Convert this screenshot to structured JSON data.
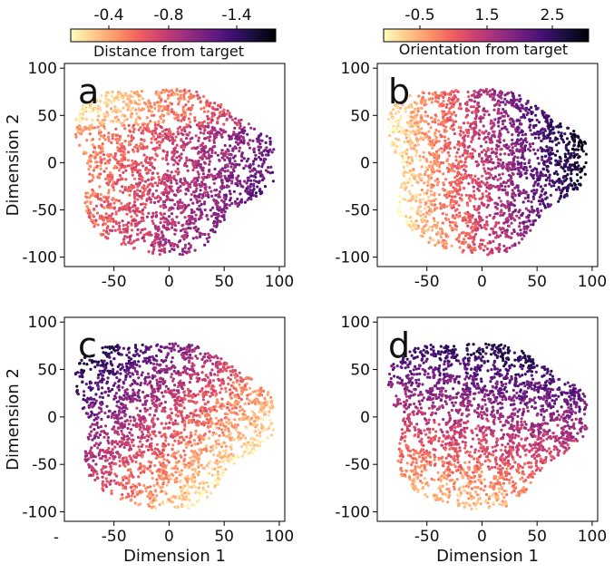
{
  "colormap": [
    "#fcfdbf",
    "#feca8d",
    "#fd9668",
    "#f1605d",
    "#cd4071",
    "#9e2f7f",
    "#721f81",
    "#440f76",
    "#180f3d",
    "#000004"
  ],
  "colorbars": [
    {
      "label": "Distance from target",
      "ticks": [
        "-0.4",
        "-0.8",
        "-1.4"
      ]
    },
    {
      "label": "Orientation from target",
      "ticks": [
        "-0.5",
        "1.5",
        "2.5"
      ]
    }
  ],
  "chart_data": [
    {
      "type": "scatter",
      "panel": "a",
      "xlabel": "",
      "ylabel": "Dimension 2",
      "xlim": [
        -95,
        105
      ],
      "ylim": [
        -110,
        105
      ],
      "xticks": [
        -50,
        0,
        50,
        100
      ],
      "yticks": [
        -100,
        -50,
        0,
        50,
        100
      ],
      "xtick_labels": [
        "-50",
        "0",
        "50",
        "100"
      ],
      "ytick_labels": [
        "-100",
        "-50",
        "0",
        "50",
        "100"
      ],
      "color_by": "Distance from target",
      "color_gradient": {
        "from": "top (light, near target)",
        "to": "right (dark, far)"
      }
    },
    {
      "type": "scatter",
      "panel": "b",
      "xlabel": "",
      "ylabel": "",
      "xlim": [
        -95,
        105
      ],
      "ylim": [
        -110,
        105
      ],
      "xticks": [
        -50,
        0,
        50,
        100
      ],
      "yticks": [
        -100,
        -50,
        0,
        50,
        100
      ],
      "xtick_labels": [
        "-50",
        "0",
        "50",
        "100"
      ],
      "ytick_labels": [
        "-100",
        "-50",
        "0",
        "50",
        "100"
      ],
      "color_by": "Orientation from target",
      "color_gradient": {
        "from": "left (light)",
        "to": "right (dark)"
      }
    },
    {
      "type": "scatter",
      "panel": "c",
      "xlabel": "Dimension 1",
      "ylabel": "Dimension 2",
      "xlim": [
        -95,
        105
      ],
      "ylim": [
        -110,
        105
      ],
      "xticks": [
        -50,
        0,
        50,
        100
      ],
      "yticks": [
        -100,
        -50,
        0,
        50,
        100
      ],
      "xtick_labels": [
        "-50",
        "0",
        "50",
        "100"
      ],
      "ytick_labels": [
        "-100",
        "-50",
        "0",
        "50",
        "100"
      ],
      "color_by": "Distance from target",
      "color_gradient": {
        "from": "lower-right (light)",
        "to": "top-left (dark)"
      }
    },
    {
      "type": "scatter",
      "panel": "d",
      "xlabel": "Dimension 1",
      "ylabel": "",
      "xlim": [
        -95,
        105
      ],
      "ylim": [
        -110,
        105
      ],
      "xticks": [
        -50,
        0,
        50,
        100
      ],
      "yticks": [
        -100,
        -50,
        0,
        50,
        100
      ],
      "xtick_labels": [
        "-50",
        "0",
        "50",
        "100"
      ],
      "ytick_labels": [
        "-100",
        "-50",
        "0",
        "50",
        "100"
      ],
      "color_by": "Orientation from target",
      "color_gradient": {
        "from": "bottom (light)",
        "to": "top (dark)"
      }
    }
  ],
  "stray_mark": "-"
}
